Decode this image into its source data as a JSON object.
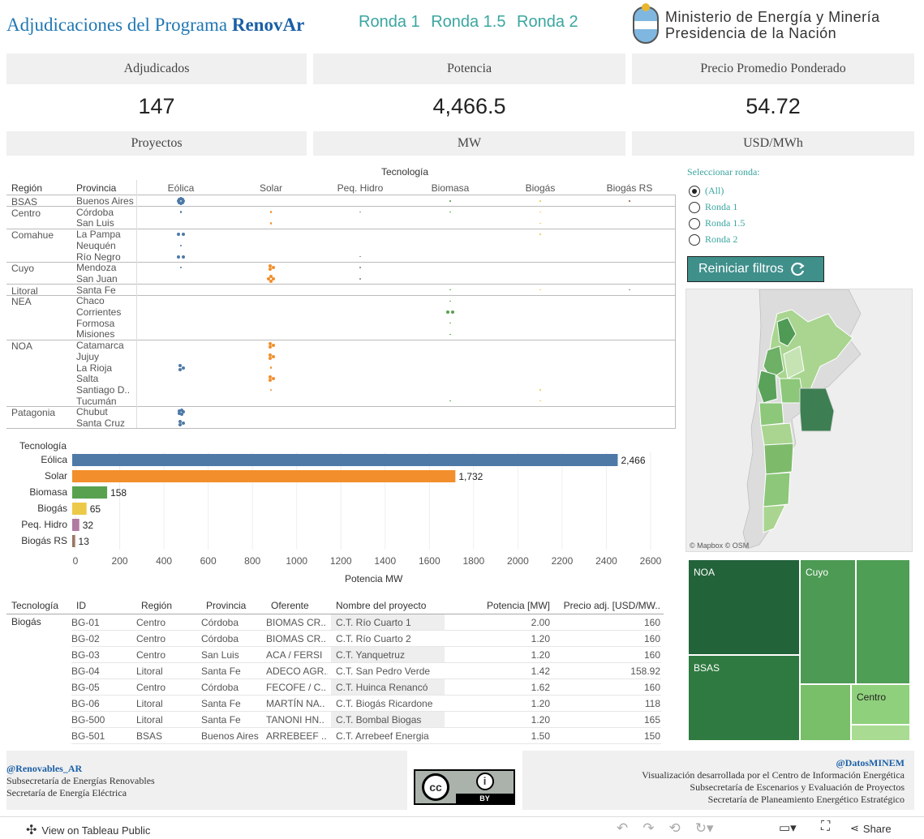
{
  "header": {
    "title_prefix": "Adjudicaciones del Programa",
    "title_brand": "RenovAr",
    "rondas": [
      "Ronda 1",
      "Ronda 1.5",
      "Ronda 2"
    ],
    "ministerio_line1": "Ministerio de Energía y Minería",
    "ministerio_line2": "Presidencia de la Nación"
  },
  "kpis": [
    {
      "head": "Adjudicados",
      "value": "147",
      "unit": "Proyectos"
    },
    {
      "head": "Potencia",
      "value": "4,466.5",
      "unit": "MW"
    },
    {
      "head": "Precio Promedio Ponderado",
      "value": "54.72",
      "unit": "USD/MWh"
    }
  ],
  "matrix": {
    "col_header_top": "Tecnología",
    "row_headers": [
      "Región",
      "Provincia"
    ],
    "technologies": [
      "Eólica",
      "Solar",
      "Peq. Hidro",
      "Biomasa",
      "Biogás",
      "Biogás RS"
    ],
    "tech_colors": [
      "#4e79a7",
      "#f28e2b",
      "#8a8a8a",
      "#59a14f",
      "#edc948",
      "#9c755f"
    ],
    "regions": [
      {
        "name": "BSAS",
        "provinces": [
          "Buenos Aires"
        ]
      },
      {
        "name": "Centro",
        "provinces": [
          "Córdoba",
          "San Luis"
        ]
      },
      {
        "name": "Comahue",
        "provinces": [
          "La Pampa",
          "Neuquén",
          "Río Negro"
        ]
      },
      {
        "name": "Cuyo",
        "provinces": [
          "Mendoza",
          "San Juan"
        ]
      },
      {
        "name": "Litoral",
        "provinces": [
          "Santa Fe"
        ]
      },
      {
        "name": "NEA",
        "provinces": [
          "Chaco",
          "Corrientes",
          "Formosa",
          "Misiones"
        ]
      },
      {
        "name": "NOA",
        "provinces": [
          "Catamarca",
          "Jujuy",
          "La Rioja",
          "Salta",
          "Santiago D..",
          "Tucumán"
        ]
      },
      {
        "name": "Patagonia",
        "provinces": [
          "Chubut",
          "Santa Cruz"
        ]
      }
    ]
  },
  "chart_data": {
    "type": "bar",
    "title": "Tecnología",
    "categories": [
      "Eólica",
      "Solar",
      "Biomasa",
      "Biogás",
      "Peq. Hidro",
      "Biogás RS"
    ],
    "values": [
      2466,
      1732,
      158,
      65,
      32,
      13
    ],
    "value_labels": [
      "2,466",
      "1,732",
      "158",
      "65",
      "32",
      "13"
    ],
    "colors": [
      "#4e79a7",
      "#f28e2b",
      "#59a14f",
      "#edc948",
      "#b07aa1",
      "#9c755f"
    ],
    "xlabel": "Potencia MW",
    "xlim": [
      0,
      2700
    ],
    "xticks": [
      0,
      200,
      400,
      600,
      800,
      1000,
      1200,
      1400,
      1600,
      1800,
      2000,
      2200,
      2400,
      2600
    ],
    "grid": true
  },
  "filter": {
    "label": "Seleccionar ronda:",
    "options": [
      "(All)",
      "Ronda 1",
      "Ronda 1.5",
      "Ronda 2"
    ],
    "selected": "(All)",
    "reset_label": "Reiniciar filtros"
  },
  "map": {
    "attribution_1": "© Mapbox",
    "attribution_2": "© OSM"
  },
  "treemap": {
    "labels": [
      "NOA",
      "Cuyo",
      "BSAS",
      "Centro"
    ]
  },
  "table": {
    "headers": [
      "Tecnología",
      "ID",
      "Región",
      "Provincia",
      "Oferente",
      "Nombre del proyecto",
      "Potencia [MW]",
      "Precio adj. [USD/MW.."
    ],
    "group": "Biogás",
    "rows": [
      [
        "BG-01",
        "Centro",
        "Córdoba",
        "BIOMAS CR..",
        "C.T. Río Cuarto 1",
        "2.00",
        "160"
      ],
      [
        "BG-02",
        "Centro",
        "Córdoba",
        "BIOMAS CR..",
        "C.T. Río Cuarto 2",
        "1.20",
        "160"
      ],
      [
        "BG-03",
        "Centro",
        "San Luis",
        "ACA / FERSI",
        "C.T. Yanquetruz",
        "1.20",
        "160"
      ],
      [
        "BG-04",
        "Litoral",
        "Santa Fe",
        "ADECO AGR..",
        "C.T. San Pedro Verde",
        "1.42",
        "158.92"
      ],
      [
        "BG-05",
        "Centro",
        "Córdoba",
        "FECOFE / C..",
        "C.T. Huinca Renancó",
        "1.62",
        "160"
      ],
      [
        "BG-06",
        "Litoral",
        "Santa Fe",
        "MARTÍN NA..",
        "C.T. Biogás Ricardone",
        "1.20",
        "118"
      ],
      [
        "BG-500",
        "Litoral",
        "Santa Fe",
        "TANONI HN..",
        "C.T. Bombal Biogas",
        "1.20",
        "165"
      ],
      [
        "BG-501",
        "BSAS",
        "Buenos Aires",
        "ARREBEEF ..",
        "C.T. Arrebeef Energia",
        "1.50",
        "150"
      ]
    ]
  },
  "footer": {
    "left_handle": "@Renovables_AR",
    "left_line1": "Subsecretaría de Energías Renovables",
    "left_line2": "Secretaría de Energía Eléctrica",
    "cc_label": "BY",
    "right_handle": "@DatosMINEM",
    "right_line1": "Visualización desarrollada por el Centro de Información Energética",
    "right_line2": "Subsecretaría de Escenarios y Evaluación de Proyectos",
    "right_line3": "Secretaría de Planeamiento Energético Estratégico"
  },
  "toolbar": {
    "view_label": "View on Tableau Public",
    "share_label": "Share"
  }
}
